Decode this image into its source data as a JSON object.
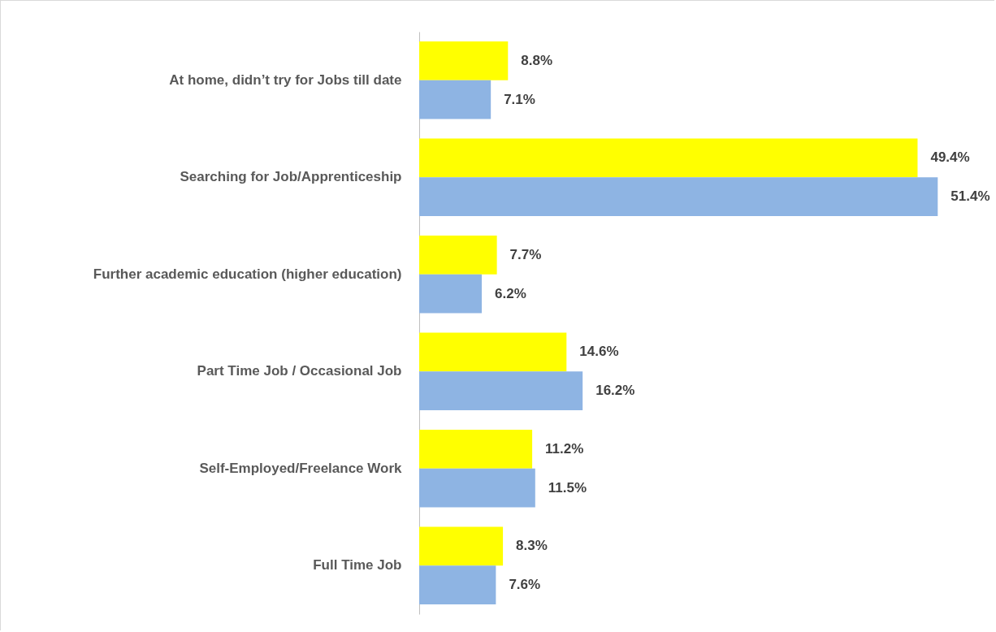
{
  "chart_data": {
    "type": "bar",
    "orientation": "horizontal",
    "categories": [
      "At home, didn’t try for Jobs till date",
      "Searching for Job/Apprenticeship",
      "Further academic education (higher education)",
      "Part Time Job / Occasional Job",
      "Self-Employed/Freelance Work",
      "Full Time Job"
    ],
    "series": [
      {
        "color": "#ffff00",
        "values": [
          8.8,
          49.4,
          7.7,
          14.6,
          11.2,
          8.3
        ],
        "value_labels": [
          "8.8%",
          "49.4%",
          "7.7%",
          "14.6%",
          "11.2%",
          "8.3%"
        ]
      },
      {
        "color": "#8eb4e3",
        "values": [
          7.1,
          51.4,
          6.2,
          16.2,
          11.5,
          7.6
        ],
        "value_labels": [
          "7.1%",
          "51.4%",
          "6.2%",
          "16.2%",
          "11.5%",
          "7.6%"
        ]
      }
    ],
    "tick_labels": "y"
  }
}
